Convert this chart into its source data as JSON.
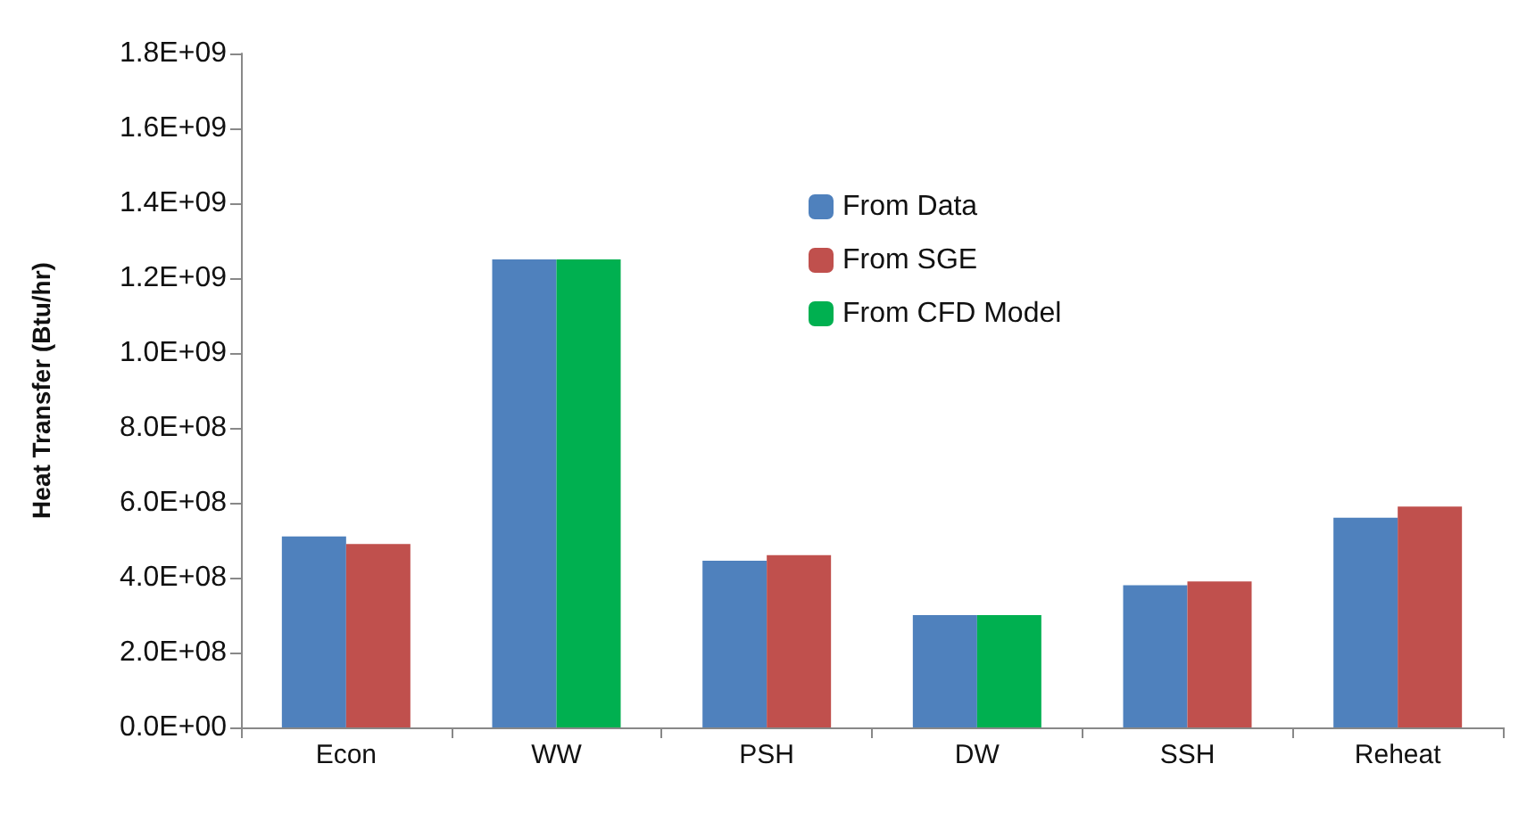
{
  "chart_data": {
    "type": "bar",
    "ylabel": "Heat Transfer (Btu/hr)",
    "categories": [
      "Econ",
      "WW",
      "PSH",
      "DW",
      "SSH",
      "Reheat"
    ],
    "series": [
      {
        "name": "From Data",
        "color": "#4f81bd",
        "values": [
          510000000.0,
          1250000000.0,
          445000000.0,
          300000000.0,
          380000000.0,
          560000000.0
        ]
      },
      {
        "name": "From SGE",
        "color": "#c0504d",
        "values": [
          490000000.0,
          null,
          460000000.0,
          null,
          390000000.0,
          590000000.0
        ]
      },
      {
        "name": "From CFD Model",
        "color": "#00b050",
        "values": [
          null,
          1250000000.0,
          null,
          300000000.0,
          null,
          null
        ]
      }
    ],
    "ylim": [
      0,
      1800000000.0
    ],
    "yticks": [
      {
        "value": 0,
        "label": "0.0E+00"
      },
      {
        "value": 200000000.0,
        "label": "2.0E+08"
      },
      {
        "value": 400000000.0,
        "label": "4.0E+08"
      },
      {
        "value": 600000000.0,
        "label": "6.0E+08"
      },
      {
        "value": 800000000.0,
        "label": "8.0E+08"
      },
      {
        "value": 1000000000.0,
        "label": "1.0E+09"
      },
      {
        "value": 1200000000.0,
        "label": "1.2E+09"
      },
      {
        "value": 1400000000.0,
        "label": "1.4E+09"
      },
      {
        "value": 1600000000.0,
        "label": "1.6E+09"
      },
      {
        "value": 1800000000.0,
        "label": "1.8E+09"
      }
    ],
    "grid": false,
    "legend": "top"
  }
}
